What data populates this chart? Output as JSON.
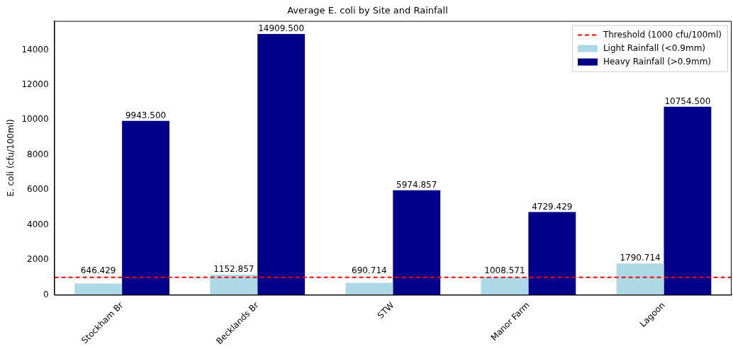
{
  "chart_data": {
    "type": "bar",
    "title": "Average E. coli by Site and Rainfall",
    "ylabel": "E. coli (cfu/100ml)",
    "categories": [
      "Stockham Br",
      "Becklands Br",
      "STW",
      "Manor Farm",
      "Lagoon"
    ],
    "series": [
      {
        "name": "Light Rainfall (<0.9mm)",
        "color": "#add8e6",
        "values": [
          646.429,
          1152.857,
          690.714,
          1008.571,
          1790.714
        ],
        "value_labels": [
          "646.429",
          "1152.857",
          "690.714",
          "1008.571",
          "1790.714"
        ]
      },
      {
        "name": "Heavy Rainfall (>0.9mm)",
        "color": "#00008b",
        "values": [
          9943.5,
          14909.5,
          5974.857,
          4729.429,
          10754.5
        ],
        "value_labels": [
          "9943.500",
          "14909.500",
          "5974.857",
          "4729.429",
          "10754.500"
        ]
      }
    ],
    "ylim": [
      0,
      15655
    ],
    "yticks": [
      0,
      2000,
      4000,
      6000,
      8000,
      10000,
      12000,
      14000
    ],
    "ref_lines": [
      {
        "axis": "y",
        "value": 1000,
        "label": "Threshold (1000 cfu/100ml)",
        "color": "#ff0000",
        "line_style": "dashed"
      }
    ],
    "grid": false,
    "legend": "top right"
  }
}
